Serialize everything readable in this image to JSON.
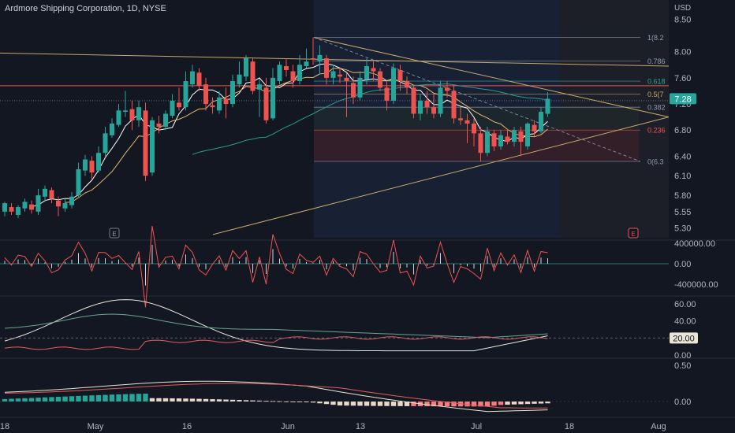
{
  "header": {
    "symbol_title": "Ardmore Shipping Corporation, 1D, NYSE"
  },
  "chart_data": {
    "type": "candlestick",
    "currency_label": "USD",
    "price_axis": {
      "ticks": [
        "8.50",
        "8.00",
        "7.60",
        "7.20",
        "6.80",
        "6.40",
        "6.10",
        "5.80",
        "5.55",
        "5.30"
      ],
      "ylim": [
        5.15,
        8.6
      ]
    },
    "last_price": "7.28",
    "x_axis": {
      "ticks": [
        "18",
        "May",
        "16",
        "Jun",
        "13",
        "Jul",
        "18",
        "Aug"
      ]
    },
    "fib_levels": [
      {
        "label": "1(8.2",
        "value": 8.22
      },
      {
        "label": "0.786",
        "value": 7.86
      },
      {
        "label": "0.618",
        "value": 7.55
      },
      {
        "label": "0.5(7",
        "value": 7.35
      },
      {
        "label": "0.382",
        "value": 7.15
      },
      {
        "label": "0.236",
        "value": 6.8
      },
      {
        "label": "0(6.3",
        "value": 6.32
      }
    ],
    "earnings_markers": [
      "E",
      "E"
    ],
    "candles": [
      [
        5.55,
        5.68,
        5.7,
        5.48
      ],
      [
        5.62,
        5.55,
        5.68,
        5.5
      ],
      [
        5.5,
        5.62,
        5.65,
        5.45
      ],
      [
        5.6,
        5.7,
        5.75,
        5.55
      ],
      [
        5.66,
        5.58,
        5.72,
        5.52
      ],
      [
        5.55,
        5.8,
        5.9,
        5.5
      ],
      [
        5.78,
        5.9,
        5.95,
        5.7
      ],
      [
        5.88,
        5.75,
        5.92,
        5.68
      ],
      [
        5.72,
        5.63,
        5.78,
        5.48
      ],
      [
        5.6,
        5.68,
        5.75,
        5.55
      ],
      [
        5.65,
        5.78,
        5.85,
        5.6
      ],
      [
        5.8,
        6.2,
        6.3,
        5.78
      ],
      [
        6.18,
        6.35,
        6.42,
        6.1
      ],
      [
        6.33,
        6.15,
        6.4,
        6.05
      ],
      [
        6.18,
        6.45,
        6.55,
        6.15
      ],
      [
        6.45,
        6.75,
        6.85,
        6.4
      ],
      [
        6.72,
        6.9,
        6.98,
        6.68
      ],
      [
        6.88,
        7.1,
        7.2,
        6.85
      ],
      [
        7.08,
        7.1,
        7.4,
        7.0
      ],
      [
        7.12,
        6.95,
        7.25,
        6.8
      ],
      [
        6.95,
        7.15,
        7.25,
        6.85
      ],
      [
        7.1,
        6.1,
        7.22,
        6.02
      ],
      [
        6.15,
        6.95,
        7.0,
        6.1
      ],
      [
        6.9,
        6.85,
        7.02,
        6.75
      ],
      [
        6.85,
        7.05,
        7.1,
        6.8
      ],
      [
        7.02,
        7.25,
        7.35,
        6.98
      ],
      [
        7.22,
        7.15,
        7.45,
        7.1
      ],
      [
        7.15,
        7.55,
        7.7,
        7.1
      ],
      [
        7.5,
        7.7,
        7.8,
        7.45
      ],
      [
        7.68,
        7.48,
        7.75,
        7.4
      ],
      [
        7.5,
        7.2,
        7.6,
        7.1
      ],
      [
        7.18,
        7.15,
        7.3,
        7.05
      ],
      [
        7.1,
        7.3,
        7.4,
        7.05
      ],
      [
        7.28,
        7.2,
        7.45,
        6.98
      ],
      [
        7.2,
        7.55,
        7.65,
        7.15
      ],
      [
        7.5,
        7.65,
        7.85,
        7.45
      ],
      [
        7.62,
        7.9,
        7.95,
        7.55
      ],
      [
        7.85,
        7.4,
        7.9,
        7.35
      ],
      [
        7.42,
        7.5,
        7.58,
        7.0
      ],
      [
        7.45,
        6.95,
        7.6,
        6.9
      ],
      [
        6.98,
        7.6,
        7.75,
        6.95
      ],
      [
        7.55,
        7.8,
        7.85,
        7.5
      ],
      [
        7.78,
        7.72,
        7.9,
        7.62
      ],
      [
        7.7,
        7.55,
        7.8,
        7.45
      ],
      [
        7.55,
        7.8,
        7.95,
        7.5
      ],
      [
        7.78,
        7.85,
        8.05,
        7.75
      ],
      [
        7.9,
        7.88,
        8.22,
        7.8
      ],
      [
        7.85,
        7.95,
        8.1,
        7.65
      ],
      [
        7.9,
        7.6,
        7.95,
        7.5
      ],
      [
        7.6,
        7.7,
        7.8,
        7.5
      ],
      [
        7.65,
        7.62,
        7.75,
        7.52
      ],
      [
        7.6,
        7.55,
        7.68,
        7.0
      ],
      [
        7.52,
        7.3,
        7.62,
        7.2
      ],
      [
        7.3,
        7.6,
        7.7,
        7.25
      ],
      [
        7.58,
        7.78,
        7.9,
        7.5
      ],
      [
        7.75,
        7.7,
        7.85,
        7.55
      ],
      [
        7.7,
        7.45,
        7.75,
        7.4
      ],
      [
        7.45,
        7.25,
        7.55,
        7.1
      ],
      [
        7.25,
        7.75,
        7.82,
        7.2
      ],
      [
        7.72,
        7.55,
        7.8,
        7.4
      ],
      [
        7.55,
        7.45,
        7.62,
        7.35
      ],
      [
        7.45,
        7.05,
        7.5,
        6.98
      ],
      [
        7.05,
        7.25,
        7.35,
        6.95
      ],
      [
        7.25,
        7.15,
        7.4,
        7.05
      ],
      [
        7.15,
        7.05,
        7.35,
        6.98
      ],
      [
        7.05,
        7.45,
        7.55,
        7.0
      ],
      [
        7.45,
        7.4,
        7.55,
        7.3
      ],
      [
        7.4,
        6.98,
        7.5,
        6.9
      ],
      [
        6.98,
        6.95,
        7.15,
        6.88
      ],
      [
        6.95,
        6.9,
        7.05,
        6.6
      ],
      [
        6.9,
        6.75,
        6.98,
        6.55
      ],
      [
        6.75,
        6.45,
        6.85,
        6.32
      ],
      [
        6.45,
        6.78,
        6.85,
        6.4
      ],
      [
        6.75,
        6.55,
        6.8,
        6.48
      ],
      [
        6.55,
        6.72,
        6.8,
        6.5
      ],
      [
        6.7,
        6.62,
        6.82,
        6.58
      ],
      [
        6.62,
        6.8,
        6.85,
        6.55
      ],
      [
        6.78,
        6.62,
        6.85,
        6.4
      ],
      [
        6.55,
        6.9,
        6.92,
        6.5
      ],
      [
        6.88,
        6.78,
        6.95,
        6.7
      ],
      [
        6.78,
        7.08,
        7.15,
        6.75
      ],
      [
        7.05,
        7.28,
        7.38,
        7.0
      ]
    ],
    "sub_panels": [
      {
        "ticks": [
          "400000.00",
          "0.00",
          "-400000.00"
        ]
      },
      {
        "ticks": [
          "60.00",
          "40.00",
          "20.00",
          "0.00"
        ],
        "current": "20.00"
      },
      {
        "ticks": [
          "0.50",
          "0.00"
        ],
        "current": "0.00"
      }
    ],
    "colors": {
      "up": "#26a69a",
      "down": "#ef5350",
      "background": "#131722",
      "trendline": "#c8a96a",
      "ma_fast": "#ffffff",
      "ma_mid": "#e6b76a",
      "ma_slow": "#2a9c8e",
      "resistance": "#ef5350"
    }
  }
}
